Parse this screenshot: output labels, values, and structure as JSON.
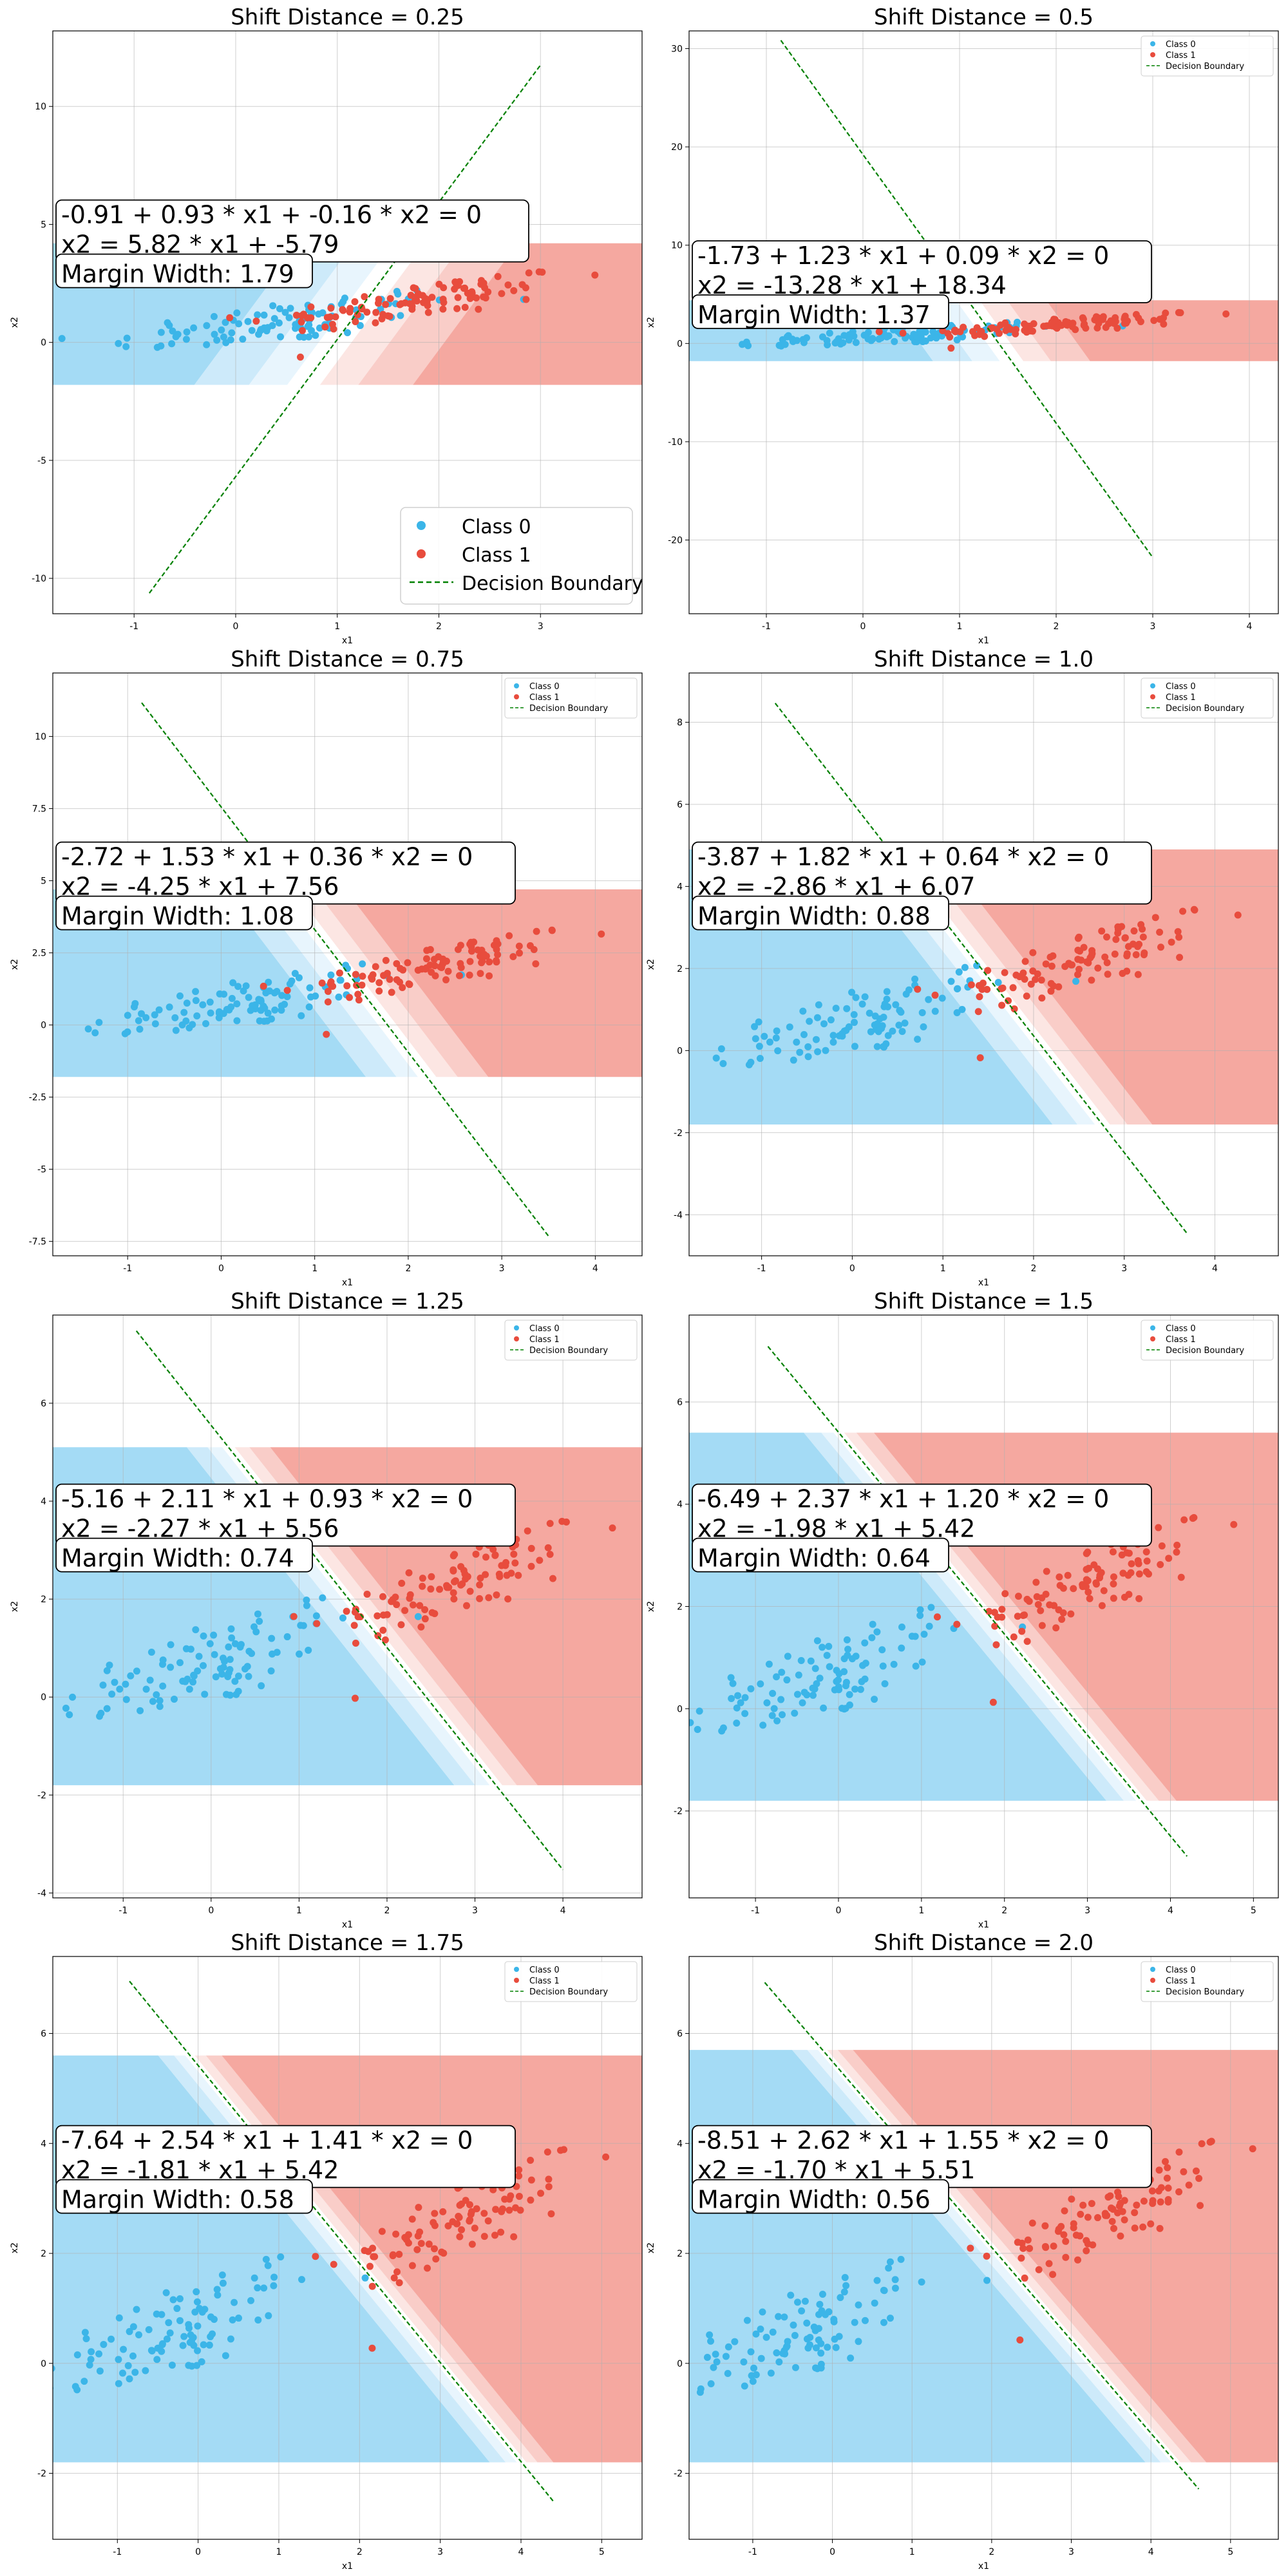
{
  "chart_data": [
    {
      "type": "scatter",
      "title": "Shift Distance = 0.25",
      "xlabel": "x1",
      "ylabel": "x2",
      "xlim": [
        -1.8,
        4.0
      ],
      "ylim": [
        -11.5,
        13.2
      ],
      "xticks": [
        -1,
        0,
        1,
        2,
        3
      ],
      "yticks": [
        -10,
        -5,
        0,
        5,
        10
      ],
      "grid": true,
      "legend": {
        "position": "lower-right",
        "size": "large",
        "entries": [
          "Class 0",
          "Class 1",
          "Decision Boundary"
        ]
      },
      "shift": 0.25,
      "boundary": {
        "intercept": -0.91,
        "w1": 0.93,
        "w2": -0.16
      },
      "region_band": [
        -1.8,
        4.2
      ],
      "annotation": {
        "lines": [
          "-0.91 + 0.93 * x1 + -0.16 * x2 = 0",
          "x2 = 5.82 * x1 + -5.79",
          "Margin Width: 1.79"
        ],
        "size": "large"
      }
    },
    {
      "type": "scatter",
      "title": "Shift Distance = 0.5",
      "xlabel": "x1",
      "ylabel": "x2",
      "xlim": [
        -1.8,
        4.3
      ],
      "ylim": [
        -27.5,
        31.8
      ],
      "xticks": [
        -1,
        0,
        1,
        2,
        3,
        4
      ],
      "yticks": [
        -20,
        -10,
        0,
        10,
        20,
        30
      ],
      "grid": true,
      "legend": {
        "position": "top-right",
        "size": "small",
        "entries": [
          "Class 0",
          "Class 1",
          "Decision Boundary"
        ]
      },
      "shift": 0.5,
      "boundary": {
        "intercept": -1.73,
        "w1": 1.23,
        "w2": 0.09
      },
      "region_band": [
        -1.8,
        4.4
      ],
      "annotation": {
        "lines": [
          "-1.73 + 1.23 * x1 + 0.09 * x2 = 0",
          "x2 = -13.28 * x1 + 18.34",
          "Margin Width: 1.37"
        ],
        "size": "large"
      }
    },
    {
      "type": "scatter",
      "title": "Shift Distance = 0.75",
      "xlabel": "x1",
      "ylabel": "x2",
      "xlim": [
        -1.8,
        4.5
      ],
      "ylim": [
        -8.0,
        12.2
      ],
      "xticks": [
        -1,
        0,
        1,
        2,
        3,
        4
      ],
      "yticks": [
        -7.5,
        -5.0,
        -2.5,
        0.0,
        2.5,
        5.0,
        7.5,
        10.0
      ],
      "grid": true,
      "legend": {
        "position": "top-right",
        "size": "small",
        "entries": [
          "Class 0",
          "Class 1",
          "Decision Boundary"
        ]
      },
      "shift": 0.75,
      "boundary": {
        "intercept": -2.72,
        "w1": 1.53,
        "w2": 0.36
      },
      "region_band": [
        -1.8,
        4.7
      ],
      "annotation": {
        "lines": [
          "-2.72 + 1.53 * x1 + 0.36 * x2 = 0",
          "x2 = -4.25 * x1 + 7.56",
          "Margin Width: 1.08"
        ],
        "size": "large"
      }
    },
    {
      "type": "scatter",
      "title": "Shift Distance = 1.0",
      "xlabel": "x1",
      "ylabel": "x2",
      "xlim": [
        -1.8,
        4.7
      ],
      "ylim": [
        -5.0,
        9.2
      ],
      "xticks": [
        -1,
        0,
        1,
        2,
        3,
        4
      ],
      "yticks": [
        -4,
        -2,
        0,
        2,
        4,
        6,
        8
      ],
      "grid": true,
      "legend": {
        "position": "top-right",
        "size": "small",
        "entries": [
          "Class 0",
          "Class 1",
          "Decision Boundary"
        ]
      },
      "shift": 1.0,
      "boundary": {
        "intercept": -3.87,
        "w1": 1.82,
        "w2": 0.64
      },
      "region_band": [
        -1.8,
        4.9
      ],
      "annotation": {
        "lines": [
          "-3.87 + 1.82 * x1 + 0.64 * x2 = 0",
          "x2 = -2.86 * x1 + 6.07",
          "Margin Width: 0.88"
        ],
        "size": "large"
      }
    },
    {
      "type": "scatter",
      "title": "Shift Distance = 1.25",
      "xlabel": "x1",
      "ylabel": "x2",
      "xlim": [
        -1.8,
        4.9
      ],
      "ylim": [
        -4.1,
        7.8
      ],
      "xticks": [
        -1,
        0,
        1,
        2,
        3,
        4
      ],
      "yticks": [
        -4,
        -2,
        0,
        2,
        4,
        6
      ],
      "grid": true,
      "legend": {
        "position": "top-right",
        "size": "small",
        "entries": [
          "Class 0",
          "Class 1",
          "Decision Boundary"
        ]
      },
      "shift": 1.25,
      "boundary": {
        "intercept": -5.16,
        "w1": 2.11,
        "w2": 0.93
      },
      "region_band": [
        -1.8,
        5.1
      ],
      "annotation": {
        "lines": [
          "-5.16 + 2.11 * x1 + 0.93 * x2 = 0",
          "x2 = -2.27 * x1 + 5.56",
          "Margin Width: 0.74"
        ],
        "size": "large"
      }
    },
    {
      "type": "scatter",
      "title": "Shift Distance = 1.5",
      "xlabel": "x1",
      "ylabel": "x2",
      "xlim": [
        -1.8,
        5.3
      ],
      "ylim": [
        -3.7,
        7.7
      ],
      "xticks": [
        -1,
        0,
        1,
        2,
        3,
        4,
        5
      ],
      "yticks": [
        -2,
        0,
        2,
        4,
        6
      ],
      "grid": true,
      "legend": {
        "position": "top-right",
        "size": "small",
        "entries": [
          "Class 0",
          "Class 1",
          "Decision Boundary"
        ]
      },
      "shift": 1.5,
      "boundary": {
        "intercept": -6.49,
        "w1": 2.37,
        "w2": 1.2
      },
      "region_band": [
        -1.8,
        5.4
      ],
      "annotation": {
        "lines": [
          "-6.49 + 2.37 * x1 + 1.20 * x2 = 0",
          "x2 = -1.98 * x1 + 5.42",
          "Margin Width: 0.64"
        ],
        "size": "large"
      }
    },
    {
      "type": "scatter",
      "title": "Shift Distance = 1.75",
      "xlabel": "x1",
      "ylabel": "x2",
      "xlim": [
        -1.8,
        5.5
      ],
      "ylim": [
        -3.2,
        7.4
      ],
      "xticks": [
        -1,
        0,
        1,
        2,
        3,
        4,
        5
      ],
      "yticks": [
        -2,
        0,
        2,
        4,
        6
      ],
      "grid": true,
      "legend": {
        "position": "top-right",
        "size": "small",
        "entries": [
          "Class 0",
          "Class 1",
          "Decision Boundary"
        ]
      },
      "shift": 1.75,
      "boundary": {
        "intercept": -7.64,
        "w1": 2.54,
        "w2": 1.41
      },
      "region_band": [
        -1.8,
        5.6
      ],
      "annotation": {
        "lines": [
          "-7.64 + 2.54 * x1 + 1.41 * x2 = 0",
          "x2 = -1.81 * x1 + 5.42",
          "Margin Width: 0.58"
        ],
        "size": "large"
      }
    },
    {
      "type": "scatter",
      "title": "Shift Distance = 2.0",
      "xlabel": "x1",
      "ylabel": "x2",
      "xlim": [
        -1.8,
        5.6
      ],
      "ylim": [
        -3.2,
        7.4
      ],
      "xticks": [
        -1,
        0,
        1,
        2,
        3,
        4,
        5
      ],
      "yticks": [
        -2,
        0,
        2,
        4,
        6
      ],
      "grid": true,
      "legend": {
        "position": "top-right",
        "size": "small",
        "entries": [
          "Class 0",
          "Class 1",
          "Decision Boundary"
        ]
      },
      "shift": 2.0,
      "boundary": {
        "intercept": -8.51,
        "w1": 2.62,
        "w2": 1.55
      },
      "region_band": [
        -1.8,
        5.7
      ],
      "annotation": {
        "lines": [
          "-8.51 + 2.62 * x1 + 1.55 * x2 = 0",
          "x2 = -1.70 * x1 + 5.51",
          "Margin Width: 0.56"
        ],
        "size": "large"
      }
    }
  ],
  "colors": {
    "class0": "#3bb5e8",
    "class1": "#e84c3d",
    "boundary": "#008000",
    "region0": [
      "#a4dbf5",
      "#cdeafa",
      "#e8f5fd"
    ],
    "region1": [
      "#f5a8a0",
      "#f9cdc8",
      "#fce6e3"
    ]
  }
}
